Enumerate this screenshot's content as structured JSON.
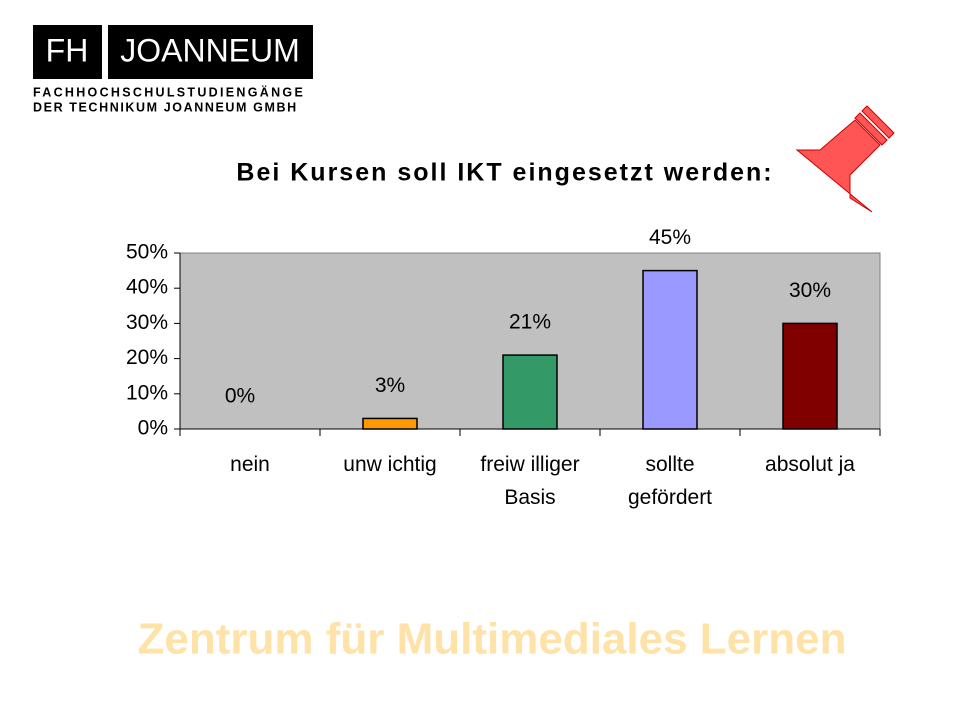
{
  "header": {
    "logo_left": "FH",
    "logo_right": "JOANNEUM",
    "line1": "FACHHOCHSCHULSTUDIENGÄNGE",
    "line2": "DER TECHNIKUM JOANNEUM GMBH"
  },
  "chart_data": {
    "type": "bar",
    "title": "Bei Kursen soll IKT eingesetzt werden:",
    "categories": [
      "nein",
      "unw ichtig",
      "freiw illiger Basis",
      "sollte gefördert",
      "absolut ja"
    ],
    "values": [
      0,
      3,
      21,
      45,
      30
    ],
    "value_labels": [
      "0%",
      "3%",
      "21%",
      "45%",
      "30%"
    ],
    "colors": [
      "#ff9900",
      "#ff9900",
      "#339966",
      "#9999ff",
      "#800000"
    ],
    "ylim": [
      0,
      50
    ],
    "yticks": [
      {
        "value": 0,
        "label": "0%"
      },
      {
        "value": 10,
        "label": "10%"
      },
      {
        "value": 20,
        "label": "20%"
      },
      {
        "value": 30,
        "label": "30%"
      },
      {
        "value": 40,
        "label": "40%"
      },
      {
        "value": 50,
        "label": "50%"
      }
    ]
  },
  "footer": "Zentrum für Multimediales Lernen"
}
